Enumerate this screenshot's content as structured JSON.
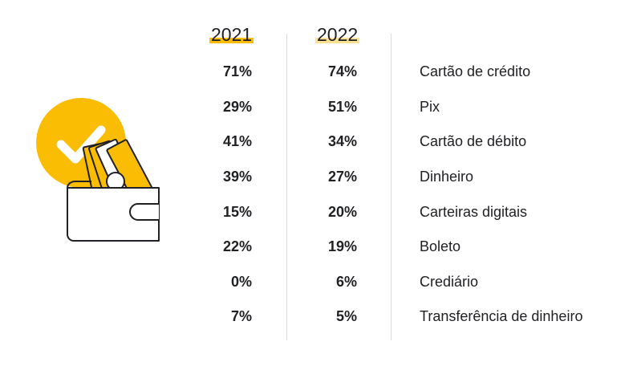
{
  "colors": {
    "highlight_2021": "#fbbc04",
    "highlight_2022": "#fde293",
    "check_circle": "#fbbc04",
    "bill": "#fbbc04",
    "outline": "#202124"
  },
  "icons": {
    "illustration": "wallet-with-money-and-check-icon"
  },
  "chart_data": {
    "type": "table",
    "columns": [
      "2021",
      "2022",
      ""
    ],
    "rows": [
      {
        "label": "Cartão de crédito",
        "v2021": "71%",
        "v2022": "74%"
      },
      {
        "label": "Pix",
        "v2021": "29%",
        "v2022": "51%"
      },
      {
        "label": "Cartão de débito",
        "v2021": "41%",
        "v2022": "34%"
      },
      {
        "label": "Dinheiro",
        "v2021": "39%",
        "v2022": "27%"
      },
      {
        "label": "Carteiras digitais",
        "v2021": "15%",
        "v2022": "20%"
      },
      {
        "label": "Boleto",
        "v2021": "22%",
        "v2022": "19%"
      },
      {
        "label": "Crediário",
        "v2021": "0%",
        "v2022": "6%"
      },
      {
        "label": "Transferência de dinheiro",
        "v2021": "7%",
        "v2022": "5%"
      }
    ]
  }
}
